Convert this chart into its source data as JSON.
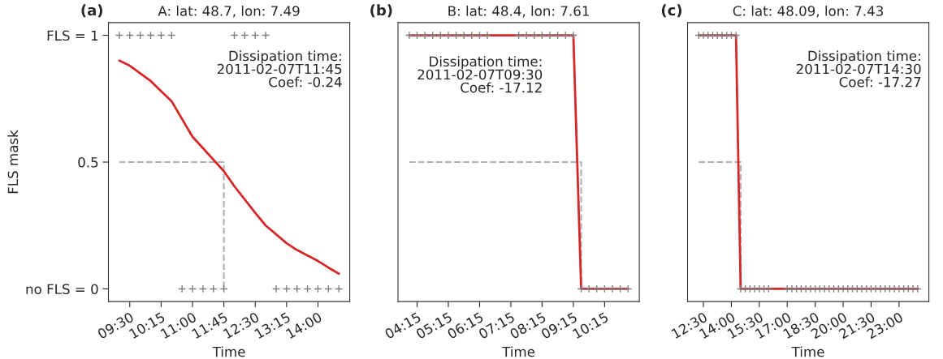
{
  "chart_data": [
    {
      "type": "line",
      "title": "A: lat: 48.7, lon: 7.49",
      "xlabel": "Time",
      "ylabel": "FLS mask",
      "annotations": [
        "(a)",
        "Dissipation time:\n2011-02-07T11:45\nCoef: -0.24"
      ],
      "series": [
        {
          "type": "scatter",
          "color": "#7f7f7f",
          "marker": "cross",
          "x": [
            9.25,
            9.5,
            9.75,
            10.0,
            10.25,
            10.5,
            10.75,
            11.0,
            11.25,
            11.5,
            11.75,
            12.0,
            12.25,
            12.5,
            12.75,
            13.0,
            13.25,
            13.5,
            13.75,
            14.0,
            14.25,
            14.5
          ],
          "values": [
            1,
            1,
            1,
            1,
            1,
            1,
            0,
            0,
            0,
            0,
            0,
            1,
            1,
            1,
            1,
            0,
            0,
            0,
            0,
            0,
            0,
            0
          ]
        },
        {
          "color": "#b0b0b0",
          "line_style": "dashed",
          "x": [
            9.25,
            11.75,
            11.75
          ],
          "values": [
            0.5,
            0.5,
            0
          ]
        },
        {
          "color": "#d62728",
          "x": [
            9.25,
            9.5,
            10.0,
            10.25,
            10.5,
            11.0,
            11.25,
            11.75,
            12.0,
            12.5,
            12.75,
            13.25,
            13.5,
            14.0,
            14.25,
            14.5
          ],
          "values": [
            0.9,
            0.88,
            0.82,
            0.78,
            0.74,
            0.6,
            0.555,
            0.464,
            0.405,
            0.3,
            0.25,
            0.18,
            0.153,
            0.11,
            0.084,
            0.06
          ]
        }
      ],
      "xlim": [
        8.99,
        14.76
      ],
      "ylim": [
        -0.05,
        1.05
      ],
      "xticks": [
        {
          "value": 9.5,
          "label": "09:30"
        },
        {
          "value": 10.25,
          "label": "10:15"
        },
        {
          "value": 11.0,
          "label": "11:00"
        },
        {
          "value": 11.75,
          "label": "11:45"
        },
        {
          "value": 12.5,
          "label": "12:30"
        },
        {
          "value": 13.25,
          "label": "13:15"
        },
        {
          "value": 14.0,
          "label": "14:00"
        }
      ],
      "yticks": [
        {
          "value": 0,
          "label": "no FLS = 0"
        },
        0.5,
        {
          "value": 1,
          "label": "FLS = 1"
        }
      ],
      "grid": false,
      "legend": false
    },
    {
      "type": "line",
      "title": "B: lat: 48.4, lon: 7.61",
      "xlabel": "Time",
      "annotations": [
        "(b)",
        "Dissipation time:\n2011-02-07T09:30\nCoef: -17.12"
      ],
      "series": [
        {
          "type": "scatter",
          "color": "#7f7f7f",
          "marker": "cross",
          "x": [
            4.0,
            4.25,
            4.5,
            4.75,
            5.0,
            5.25,
            5.5,
            5.75,
            6.0,
            6.25,
            6.5,
            7.5,
            7.75,
            8.0,
            8.25,
            8.5,
            8.75,
            9.0,
            9.25,
            9.5,
            9.75,
            10.0,
            10.25,
            10.5,
            10.75,
            11.0
          ],
          "values": [
            1,
            1,
            1,
            1,
            1,
            1,
            1,
            1,
            1,
            1,
            1,
            1,
            1,
            1,
            1,
            1,
            1,
            1,
            1,
            0,
            0,
            0,
            0,
            0,
            0,
            0
          ]
        },
        {
          "color": "#b0b0b0",
          "line_style": "dashed",
          "x": [
            4.0,
            9.5,
            9.5
          ],
          "values": [
            0.5,
            0.5,
            0
          ]
        },
        {
          "color": "#d62728",
          "x": [
            4.0,
            9.25,
            9.5,
            11.0
          ],
          "values": [
            1,
            1,
            0,
            0
          ]
        }
      ],
      "xlim": [
        3.64,
        11.36
      ],
      "ylim": [
        -0.05,
        1.05
      ],
      "tick_labels": "x",
      "xticks": [
        {
          "value": 4.25,
          "label": "04:15"
        },
        {
          "value": 5.25,
          "label": "05:15"
        },
        {
          "value": 6.25,
          "label": "06:15"
        },
        {
          "value": 7.25,
          "label": "07:15"
        },
        {
          "value": 8.25,
          "label": "08:15"
        },
        {
          "value": 9.25,
          "label": "09:15"
        },
        {
          "value": 10.25,
          "label": "10:15"
        }
      ],
      "grid": false,
      "legend": false
    },
    {
      "type": "line",
      "title": "C: lat: 48.09, lon: 7.43",
      "xlabel": "Time",
      "annotations": [
        "(c)",
        "Dissipation time:\n2011-02-07T14:30\nCoef: -17.27"
      ],
      "series": [
        {
          "type": "scatter",
          "color": "#7f7f7f",
          "marker": "cross",
          "x": [
            12.25,
            12.5,
            12.75,
            13.0,
            13.25,
            13.5,
            13.75,
            14.0,
            14.25,
            14.5,
            14.75,
            15.0,
            15.25,
            15.5,
            15.75,
            16.0,
            17.0,
            17.25,
            17.5,
            17.75,
            18.0,
            18.25,
            18.5,
            18.75,
            19.0,
            19.25,
            19.5,
            19.75,
            20.0,
            20.25,
            20.5,
            20.75,
            21.0,
            21.25,
            21.5,
            21.75,
            22.0,
            22.25,
            22.5,
            22.75,
            23.0,
            23.25,
            23.5,
            23.75,
            24.0
          ],
          "values": [
            1,
            1,
            1,
            1,
            1,
            1,
            1,
            1,
            1,
            0,
            0,
            0,
            0,
            0,
            0,
            0,
            0,
            0,
            0,
            0,
            0,
            0,
            0,
            0,
            0,
            0,
            0,
            0,
            0,
            0,
            0,
            0,
            0,
            0,
            0,
            0,
            0,
            0,
            0,
            0,
            0,
            0,
            0,
            0,
            0
          ]
        },
        {
          "color": "#b0b0b0",
          "line_style": "dashed",
          "x": [
            12.25,
            14.5,
            14.5
          ],
          "values": [
            0.5,
            0.5,
            0
          ]
        },
        {
          "color": "#d62728",
          "x": [
            12.25,
            14.25,
            14.5,
            24.0
          ],
          "values": [
            1,
            1,
            0,
            0
          ]
        }
      ],
      "xlim": [
        11.65,
        24.6
      ],
      "ylim": [
        -0.05,
        1.05
      ],
      "tick_labels": "x",
      "xticks": [
        {
          "value": 12.5,
          "label": "12:30"
        },
        {
          "value": 14.0,
          "label": "14:00"
        },
        {
          "value": 15.5,
          "label": "15:30"
        },
        {
          "value": 17.0,
          "label": "17:00"
        },
        {
          "value": 18.5,
          "label": "18:30"
        },
        {
          "value": 20.0,
          "label": "20:00"
        },
        {
          "value": 21.5,
          "label": "21:30"
        },
        {
          "value": 23.0,
          "label": "23:00"
        }
      ],
      "grid": false,
      "legend": false
    }
  ]
}
